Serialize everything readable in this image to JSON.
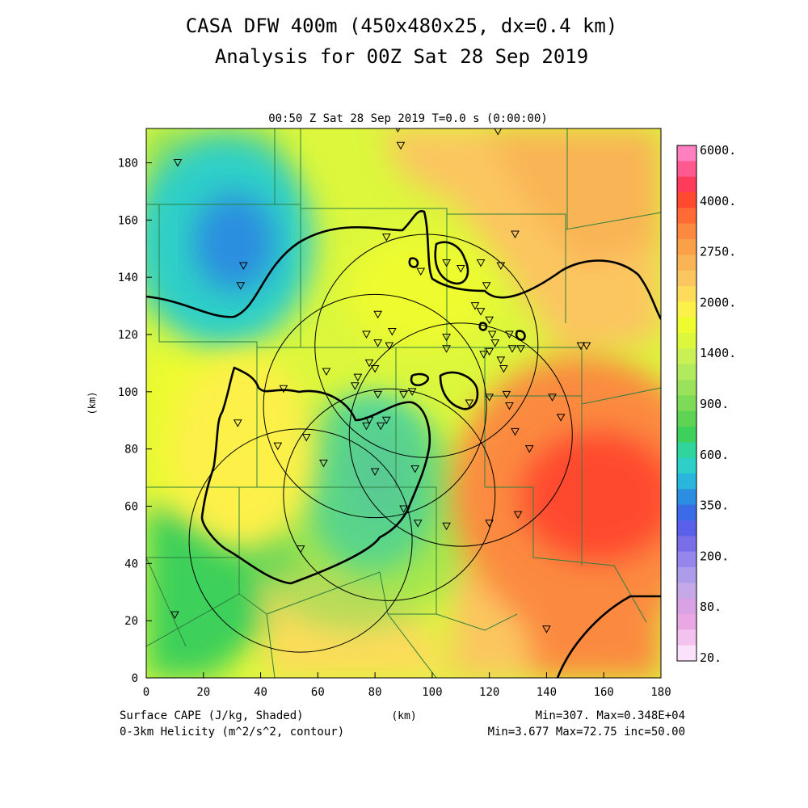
{
  "header": {
    "title_line1": "CASA DFW 400m (450x480x25, dx=0.4 km)",
    "title_line2": "Analysis for 00Z Sat 28 Sep 2019",
    "subtitle": "00:50 Z Sat 28 Sep 2019    T=0.0 s (0:00:00)"
  },
  "footer": {
    "field1": "Surface CAPE (J/kg, Shaded)",
    "field2": "0-3km Helicity (m^2/s^2, contour)",
    "xunit": "(km)",
    "stats1": "Min=307. Max=0.348E+04",
    "stats2": "Min=3.677 Max=72.75 inc=50.00"
  },
  "chart_data": {
    "type": "heatmap",
    "xlabel": "(km)",
    "ylabel": "(km)",
    "xlim": [
      0,
      180
    ],
    "ylim": [
      0,
      192
    ],
    "xticks": [
      "0",
      "20",
      "40",
      "60",
      "80",
      "100",
      "120",
      "140",
      "160",
      "180"
    ],
    "yticks": [
      "0",
      "20",
      "40",
      "60",
      "80",
      "100",
      "120",
      "140",
      "160",
      "180"
    ],
    "shaded_field": "Surface CAPE (J/kg)",
    "shaded_min": 307,
    "shaded_max": 3480,
    "contour_field": "0-3km Helicity (m^2/s^2)",
    "contour_min": 3.677,
    "contour_max": 72.75,
    "contour_inc": 50.0,
    "colorbar": {
      "labels": [
        "6000.",
        "4000.",
        "2750.",
        "2000.",
        "1400.",
        "900.",
        "600.",
        "350.",
        "200.",
        "80.",
        "20."
      ],
      "colors": [
        "#ff7fbf",
        "#ff5a8f",
        "#ff3b5c",
        "#ff4a2f",
        "#ff6a35",
        "#fb8a40",
        "#faa048",
        "#f9b455",
        "#fbc660",
        "#fcdc5a",
        "#fcf04a",
        "#eefb2f",
        "#dcf73c",
        "#c9f055",
        "#b2ea5e",
        "#9ae25c",
        "#7edb58",
        "#5fd354",
        "#3dd05a",
        "#2fd59a",
        "#2ecfc8",
        "#2ab6dc",
        "#2c8ee0",
        "#3a6ce8",
        "#5a60ea",
        "#7a6ee8",
        "#9486ea",
        "#ad9cea",
        "#c4a8e8",
        "#d9a2e4",
        "#e9a8e4",
        "#f3c2ef",
        "#fbe2fa"
      ]
    },
    "radar_circles_km": [
      {
        "cx": 98,
        "cy": 116,
        "r": 39
      },
      {
        "cx": 80,
        "cy": 95,
        "r": 39
      },
      {
        "cx": 85,
        "cy": 64,
        "r": 37
      },
      {
        "cx": 54,
        "cy": 48,
        "r": 39
      },
      {
        "cx": 110,
        "cy": 85,
        "r": 39
      }
    ],
    "stations_km": [
      [
        11,
        180
      ],
      [
        34,
        144
      ],
      [
        33,
        137
      ],
      [
        88,
        192
      ],
      [
        89,
        186
      ],
      [
        123,
        191
      ],
      [
        84,
        154
      ],
      [
        129,
        155
      ],
      [
        105,
        145
      ],
      [
        110,
        143
      ],
      [
        117,
        145
      ],
      [
        124,
        144
      ],
      [
        96,
        142
      ],
      [
        119,
        137
      ],
      [
        115,
        130
      ],
      [
        117,
        128
      ],
      [
        120,
        125
      ],
      [
        121,
        120
      ],
      [
        127,
        120
      ],
      [
        120,
        114
      ],
      [
        122,
        117
      ],
      [
        128,
        115
      ],
      [
        131,
        115
      ],
      [
        105,
        119
      ],
      [
        86,
        121
      ],
      [
        81,
        127
      ],
      [
        77,
        120
      ],
      [
        81,
        117
      ],
      [
        85,
        116
      ],
      [
        78,
        110
      ],
      [
        74,
        105
      ],
      [
        80,
        108
      ],
      [
        73,
        102
      ],
      [
        105,
        115
      ],
      [
        118,
        113
      ],
      [
        124,
        111
      ],
      [
        125,
        108
      ],
      [
        152,
        116
      ],
      [
        154,
        116
      ],
      [
        63,
        107
      ],
      [
        48,
        101
      ],
      [
        32,
        89
      ],
      [
        46,
        81
      ],
      [
        56,
        84
      ],
      [
        81,
        99
      ],
      [
        90,
        99
      ],
      [
        93,
        100
      ],
      [
        78,
        90
      ],
      [
        77,
        88
      ],
      [
        82,
        88
      ],
      [
        84,
        90
      ],
      [
        113,
        96
      ],
      [
        120,
        98
      ],
      [
        126,
        99
      ],
      [
        127,
        95
      ],
      [
        142,
        98
      ],
      [
        145,
        91
      ],
      [
        129,
        86
      ],
      [
        134,
        80
      ],
      [
        62,
        75
      ],
      [
        80,
        72
      ],
      [
        94,
        73
      ],
      [
        90,
        59
      ],
      [
        95,
        54
      ],
      [
        105,
        53
      ],
      [
        120,
        54
      ],
      [
        130,
        57
      ],
      [
        54,
        45
      ],
      [
        10,
        22
      ],
      [
        140,
        17
      ]
    ]
  }
}
